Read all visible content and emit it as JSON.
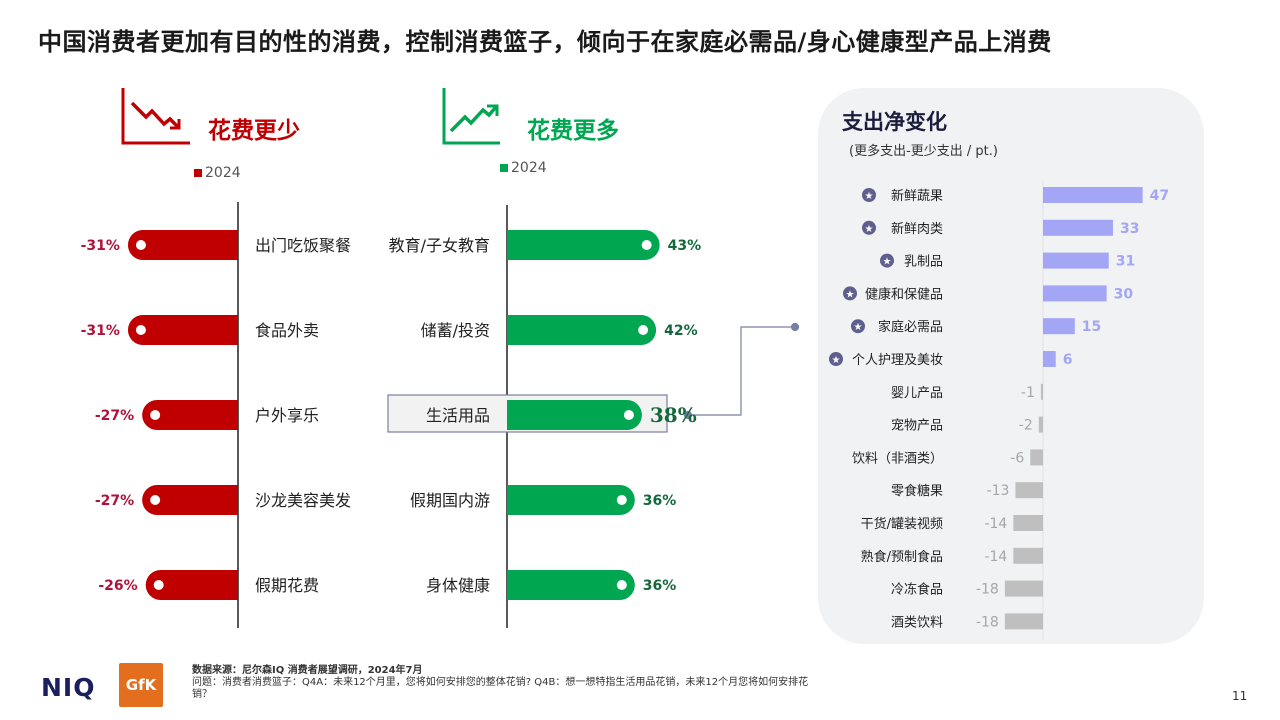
{
  "title": "中国消费者更加有目的性的消费，控制消费篮子，倾向于在家庭必需品/身心健康型产品上消费",
  "left_panel": {
    "less_label": "花费更少",
    "more_label": "花费更多",
    "legend_year": "2024",
    "colors": {
      "less": "#c00000",
      "more": "#00a650"
    }
  },
  "chart_data": [
    {
      "type": "bar",
      "orientation": "horizontal",
      "title": "花费更少",
      "legend": [
        "2024"
      ],
      "categories": [
        "出门吃饭聚餐",
        "食品外卖",
        "户外享乐",
        "沙龙美容美发",
        "假期花费"
      ],
      "values": [
        -31,
        -31,
        -27,
        -27,
        -26
      ],
      "value_labels": [
        "-31%",
        "-31%",
        "-27%",
        "-27%",
        "-26%"
      ],
      "unit": "%"
    },
    {
      "type": "bar",
      "orientation": "horizontal",
      "title": "花费更多",
      "legend": [
        "2024"
      ],
      "categories": [
        "教育/子女教育",
        "储蓄/投资",
        "生活用品",
        "假期国内游",
        "身体健康"
      ],
      "values": [
        43,
        42,
        38,
        36,
        36
      ],
      "value_labels": [
        "43%",
        "42%",
        "38%",
        "36%",
        "36%"
      ],
      "highlighted": "生活用品",
      "unit": "%"
    },
    {
      "type": "bar",
      "orientation": "horizontal",
      "title": "支出净变化",
      "subtitle": "(更多支出-更少支出 / pt.)",
      "categories": [
        "新鲜蔬果",
        "新鲜肉类",
        "乳制品",
        "健康和保健品",
        "家庭必需品",
        "个人护理及美妆",
        "婴儿产品",
        "宠物产品",
        "饮料（非酒类）",
        "零食糖果",
        "干货/罐装视频",
        "熟食/预制食品",
        "冷冻食品",
        "酒类饮料"
      ],
      "values": [
        47,
        33,
        31,
        30,
        15,
        6,
        -1,
        -2,
        -6,
        -13,
        -14,
        -14,
        -18,
        -18
      ],
      "starred": [
        true,
        true,
        true,
        true,
        true,
        true,
        false,
        false,
        false,
        false,
        false,
        false,
        false,
        false
      ],
      "colors": {
        "positive": "#a3a6f5",
        "negative": "#bfbfbf",
        "positive_label": "#a3a6f5",
        "negative_label": "#a6a6a6",
        "star": "#5f5f8f"
      }
    }
  ],
  "footer": {
    "source": "数据来源：尼尔森IQ 消费者展望调研，2024年7月",
    "question": "问题：消费者消费篮子：Q4A：未来12个月里，您将如何安排您的整体花销? Q4B：想一想特指生活用品花销，未来12个月您将如何安排花销？"
  },
  "page_number": "11",
  "logos": {
    "niq": "NIQ",
    "gfk": "GfK"
  }
}
